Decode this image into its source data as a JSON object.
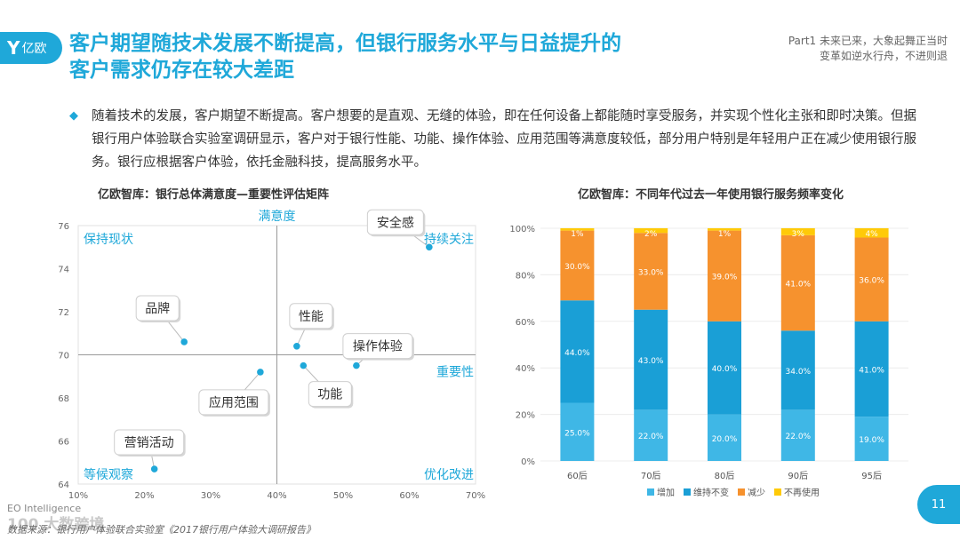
{
  "logo": {
    "mark": "Y",
    "text": "亿欧"
  },
  "header": {
    "title_line1": "客户期望随技术发展不断提高，但银行服务水平与日益提升的",
    "title_line2": "客户需求仍存在较大差距",
    "subtitle_line1": "Part1 未来已来，大象起舞正当时",
    "subtitle_line2": "变革如逆水行舟，不进则退"
  },
  "bullet": {
    "icon": "diamond-icon",
    "text": "随着技术的发展，客户期望不断提高。客户想要的是直观、无缝的体验，即在任何设备上都能随时享受服务，并实现个性化主张和即时决策。但据银行用户体验联合实验室调研显示，客户对于银行性能、功能、操作体验、应用范围等满意度较低，部分用户特别是年轻用户正在减少使用银行服务。银行应根据客户体验，依托金融科技，提高服务水平。"
  },
  "chart_data": [
    {
      "type": "scatter",
      "title": "亿欧智库：银行总体满意度—重要性评估矩阵",
      "xlabel": "重要性",
      "ylabel": "满意度",
      "xlim": [
        10,
        70
      ],
      "ylim": [
        64,
        76
      ],
      "x_ticks": [
        "10%",
        "20%",
        "30%",
        "40%",
        "50%",
        "60%",
        "70%"
      ],
      "y_ticks": [
        "64",
        "66",
        "68",
        "70",
        "72",
        "74",
        "76"
      ],
      "quadrants": {
        "top_left": "保持现状",
        "top_right": "持续关注",
        "bottom_left": "等候观察",
        "bottom_right": "优化改进"
      },
      "points": [
        {
          "label": "安全感",
          "x": 63,
          "y": 75.0
        },
        {
          "label": "品牌",
          "x": 26,
          "y": 70.6
        },
        {
          "label": "性能",
          "x": 43,
          "y": 70.4
        },
        {
          "label": "操作体验",
          "x": 52,
          "y": 69.5
        },
        {
          "label": "应用范围",
          "x": 37.5,
          "y": 69.2
        },
        {
          "label": "功能",
          "x": 44,
          "y": 69.5
        },
        {
          "label": "营销活动",
          "x": 21.5,
          "y": 64.7
        }
      ],
      "point_color": "#1fa8d9"
    },
    {
      "type": "bar",
      "stacked": true,
      "title": "亿欧智库：不同年代过去一年使用银行服务频率变化",
      "categories": [
        "60后",
        "70后",
        "80后",
        "90后",
        "95后"
      ],
      "ylim": [
        0,
        100
      ],
      "y_ticks": [
        "0%",
        "20%",
        "40%",
        "60%",
        "80%",
        "100%"
      ],
      "series": [
        {
          "name": "增加",
          "color": "#3fb7e6",
          "values": [
            25,
            22,
            20,
            22,
            19
          ]
        },
        {
          "name": "维持不变",
          "color": "#1a9fd6",
          "values": [
            44,
            43,
            40,
            34,
            41
          ]
        },
        {
          "name": "减少",
          "color": "#f6922e",
          "values": [
            30,
            33,
            39,
            41,
            36
          ]
        },
        {
          "name": "不再使用",
          "color": "#ffca08",
          "values": [
            1,
            2,
            1,
            3,
            4
          ]
        }
      ],
      "labels": [
        [
          "25.0%",
          "22.0%",
          "20.0%",
          "22.0%",
          "19.0%"
        ],
        [
          "44.0%",
          "43.0%",
          "40.0%",
          "34.0%",
          "41.0%"
        ],
        [
          "30.0%",
          "33.0%",
          "39.0%",
          "41.0%",
          "36.0%"
        ],
        [
          "1%",
          "2%",
          "1%",
          "3%",
          "4%"
        ]
      ]
    }
  ],
  "footer": {
    "brand": "EO Intelligence",
    "watermark": "100 大数跨境",
    "source": "数据来源：银行用户体验联合实验室《2017银行用户体验大调研报告》",
    "page": "11"
  }
}
